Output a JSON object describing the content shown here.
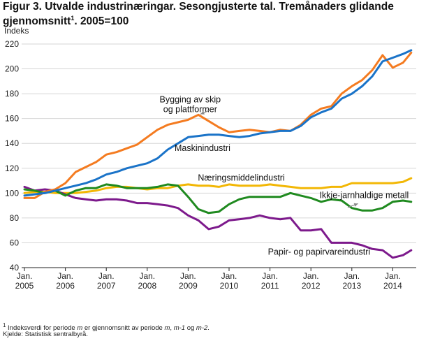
{
  "title_main": "Figur 3. Utvalde industrinæringar. Sesongjusterte tal. Tremånaders glidande gjennomsnitt",
  "title_sup": "1",
  "title_tail": ". 2005=100",
  "footnote": {
    "marker": "1",
    "p1": " Indeksverdi for periode ",
    "m1": "m",
    "p2": " er gjennomsnitt av periode ",
    "m2": "m",
    "p3": ", ",
    "m3": "m-1",
    "p4": " og ",
    "m4": "m-2",
    "p5": "."
  },
  "source": "Kjelde: Statistisk sentralbyrå.",
  "chart_data": {
    "type": "line",
    "ylabel": "Indeks",
    "ylim": [
      40,
      220
    ],
    "yticks": [
      40,
      60,
      80,
      100,
      120,
      140,
      160,
      180,
      200,
      220
    ],
    "xlim": [
      2005.0,
      2014.5
    ],
    "xtick_labels": [
      {
        "top": "Jan.",
        "bottom": "2005"
      },
      {
        "top": "Jan.",
        "bottom": "2006"
      },
      {
        "top": "Jan.",
        "bottom": "2007"
      },
      {
        "top": "Jan.",
        "bottom": "2008"
      },
      {
        "top": "Jan.",
        "bottom": "2009"
      },
      {
        "top": "Jan.",
        "bottom": "2010"
      },
      {
        "top": "Jan.",
        "bottom": "2011"
      },
      {
        "top": "Jan.",
        "bottom": "2012"
      },
      {
        "top": "Jan.",
        "bottom": "2013"
      },
      {
        "top": "Jan.",
        "bottom": "2014"
      }
    ],
    "grid": "horizontal",
    "series": [
      {
        "name": "Bygging av skip og plattformer",
        "color": "#f47b20",
        "x": [
          2005.0,
          2005.25,
          2005.5,
          2005.75,
          2006.0,
          2006.25,
          2006.5,
          2006.75,
          2007.0,
          2007.25,
          2007.5,
          2007.75,
          2008.0,
          2008.25,
          2008.5,
          2008.75,
          2009.0,
          2009.25,
          2009.5,
          2009.75,
          2010.0,
          2010.25,
          2010.5,
          2010.75,
          2011.0,
          2011.25,
          2011.5,
          2011.75,
          2012.0,
          2012.25,
          2012.5,
          2012.75,
          2013.0,
          2013.25,
          2013.5,
          2013.75,
          2014.0,
          2014.25,
          2014.45
        ],
        "y": [
          96,
          96,
          101,
          103,
          108,
          117,
          121,
          125,
          131,
          133,
          136,
          139,
          145,
          151,
          155,
          157,
          159,
          163,
          158,
          153,
          149,
          150,
          151,
          150,
          149,
          151,
          150,
          155,
          163,
          168,
          170,
          180,
          186,
          191,
          199,
          211,
          201,
          205,
          213
        ]
      },
      {
        "name": "Maskinindustri",
        "color": "#1a73c8",
        "x": [
          2005.0,
          2005.25,
          2005.5,
          2005.75,
          2006.0,
          2006.25,
          2006.5,
          2006.75,
          2007.0,
          2007.25,
          2007.5,
          2007.75,
          2008.0,
          2008.25,
          2008.5,
          2008.75,
          2009.0,
          2009.25,
          2009.5,
          2009.75,
          2010.0,
          2010.25,
          2010.5,
          2010.75,
          2011.0,
          2011.25,
          2011.5,
          2011.75,
          2012.0,
          2012.25,
          2012.5,
          2012.75,
          2013.0,
          2013.25,
          2013.5,
          2013.75,
          2014.0,
          2014.25,
          2014.45
        ],
        "y": [
          98,
          99,
          100,
          102,
          104,
          106,
          108,
          111,
          115,
          117,
          120,
          122,
          124,
          128,
          135,
          140,
          145,
          146,
          147,
          147,
          146,
          145,
          146,
          148,
          149,
          150,
          150,
          154,
          161,
          165,
          168,
          176,
          180,
          186,
          194,
          206,
          209,
          212,
          215
        ]
      },
      {
        "name": "Næringsmiddelindustri",
        "color": "#f2b705",
        "x": [
          2005.0,
          2005.25,
          2005.5,
          2005.75,
          2006.0,
          2006.25,
          2006.5,
          2006.75,
          2007.0,
          2007.25,
          2007.5,
          2007.75,
          2008.0,
          2008.25,
          2008.5,
          2008.75,
          2009.0,
          2009.25,
          2009.5,
          2009.75,
          2010.0,
          2010.25,
          2010.5,
          2010.75,
          2011.0,
          2011.25,
          2011.5,
          2011.75,
          2012.0,
          2012.25,
          2012.5,
          2012.75,
          2013.0,
          2013.25,
          2013.5,
          2013.75,
          2014.0,
          2014.25,
          2014.45
        ],
        "y": [
          100,
          101,
          101,
          100,
          100,
          100,
          101,
          102,
          104,
          105,
          105,
          104,
          103,
          104,
          104,
          106,
          107,
          106,
          106,
          105,
          107,
          106,
          106,
          106,
          107,
          106,
          105,
          104,
          104,
          104,
          105,
          105,
          108,
          108,
          108,
          108,
          108,
          109,
          112
        ]
      },
      {
        "name": "Ikkje-jarnhaldige metall",
        "color": "#1f8a1f",
        "x": [
          2005.0,
          2005.25,
          2005.5,
          2005.75,
          2006.0,
          2006.25,
          2006.5,
          2006.75,
          2007.0,
          2007.25,
          2007.5,
          2007.75,
          2008.0,
          2008.25,
          2008.5,
          2008.75,
          2009.0,
          2009.25,
          2009.5,
          2009.75,
          2010.0,
          2010.25,
          2010.5,
          2010.75,
          2011.0,
          2011.25,
          2011.5,
          2011.75,
          2012.0,
          2012.25,
          2012.5,
          2012.75,
          2013.0,
          2013.25,
          2013.5,
          2013.75,
          2014.0,
          2014.25,
          2014.45
        ],
        "y": [
          103,
          102,
          100,
          102,
          98,
          102,
          104,
          104,
          107,
          106,
          104,
          104,
          104,
          105,
          107,
          106,
          97,
          87,
          84,
          85,
          91,
          95,
          97,
          97,
          97,
          97,
          100,
          98,
          96,
          93,
          95,
          94,
          88,
          86,
          86,
          88,
          93,
          94,
          93
        ]
      },
      {
        "name": "Papir- og papirvareindustri",
        "color": "#7d1a8c",
        "x": [
          2005.0,
          2005.25,
          2005.5,
          2005.75,
          2006.0,
          2006.25,
          2006.5,
          2006.75,
          2007.0,
          2007.25,
          2007.5,
          2007.75,
          2008.0,
          2008.25,
          2008.5,
          2008.75,
          2009.0,
          2009.25,
          2009.5,
          2009.75,
          2010.0,
          2010.25,
          2010.5,
          2010.75,
          2011.0,
          2011.25,
          2011.5,
          2011.75,
          2012.0,
          2012.25,
          2012.5,
          2012.75,
          2013.0,
          2013.25,
          2013.5,
          2013.75,
          2014.0,
          2014.25,
          2014.45
        ],
        "y": [
          105,
          102,
          103,
          102,
          99,
          96,
          95,
          94,
          95,
          95,
          94,
          92,
          92,
          91,
          90,
          88,
          82,
          78,
          71,
          73,
          78,
          79,
          80,
          82,
          80,
          79,
          80,
          70,
          70,
          71,
          60,
          60,
          60,
          58,
          55,
          54,
          48,
          50,
          54
        ]
      }
    ],
    "annotations": [
      {
        "lines": [
          "Bygging av skip",
          "og plattformer"
        ],
        "series": "Bygging av skip og plattformer",
        "arrow": true
      },
      {
        "lines": [
          "Maskinindustri"
        ],
        "series": "Maskinindustri",
        "arrow": false
      },
      {
        "lines": [
          "Næringsmiddelindustri"
        ],
        "series": "Næringsmiddelindustri",
        "arrow": false
      },
      {
        "lines": [
          "Ikkje-jarnhaldige metall"
        ],
        "series": "Ikkje-jarnhaldige metall",
        "arrow": true
      },
      {
        "lines": [
          "Papir- og papirvareindustri"
        ],
        "series": "Papir- og papirvareindustri",
        "arrow": false
      }
    ]
  }
}
